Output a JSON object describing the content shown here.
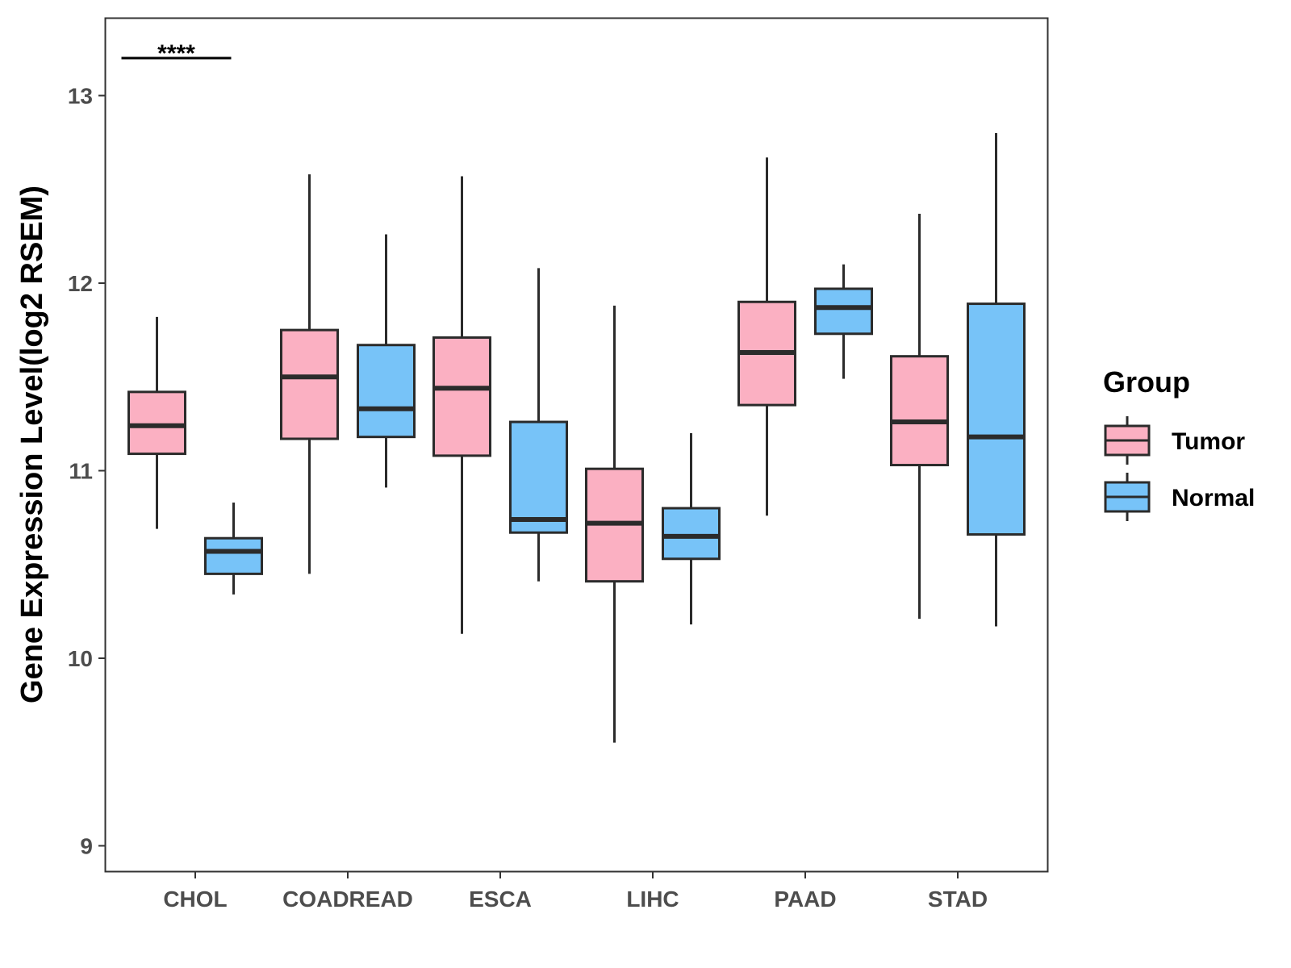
{
  "chart_data": {
    "type": "boxplot",
    "title": "",
    "xlabel": "",
    "ylabel": "Gene Expression Level(log2 RSEM)",
    "ylim": [
      8.7,
      13.4
    ],
    "yticks": [
      9,
      10,
      11,
      12,
      13
    ],
    "categories": [
      "CHOL",
      "COADREAD",
      "ESCA",
      "LIHC",
      "PAAD",
      "STAD"
    ],
    "legend": {
      "title": "Group",
      "position": "right",
      "entries": [
        {
          "name": "Tumor",
          "color": "#fbb0c2"
        },
        {
          "name": "Normal",
          "color": "#77c3f8"
        }
      ]
    },
    "series": [
      {
        "name": "Tumor",
        "color": "#fbb0c2",
        "boxes": [
          {
            "category": "CHOL",
            "min": 10.69,
            "q1": 11.09,
            "median": 11.24,
            "q3": 11.42,
            "max": 11.82
          },
          {
            "category": "COADREAD",
            "min": 10.45,
            "q1": 11.17,
            "median": 11.5,
            "q3": 11.75,
            "max": 12.58
          },
          {
            "category": "ESCA",
            "min": 10.13,
            "q1": 11.08,
            "median": 11.44,
            "q3": 11.71,
            "max": 12.57
          },
          {
            "category": "LIHC",
            "min": 9.55,
            "q1": 10.41,
            "median": 10.72,
            "q3": 11.01,
            "max": 11.88
          },
          {
            "category": "PAAD",
            "min": 10.76,
            "q1": 11.35,
            "median": 11.63,
            "q3": 11.9,
            "max": 12.67
          },
          {
            "category": "STAD",
            "min": 10.21,
            "q1": 11.03,
            "median": 11.26,
            "q3": 11.61,
            "max": 12.37
          }
        ]
      },
      {
        "name": "Normal",
        "color": "#77c3f8",
        "boxes": [
          {
            "category": "CHOL",
            "min": 10.34,
            "q1": 10.45,
            "median": 10.57,
            "q3": 10.64,
            "max": 10.83
          },
          {
            "category": "COADREAD",
            "min": 10.91,
            "q1": 11.18,
            "median": 11.33,
            "q3": 11.67,
            "max": 12.26
          },
          {
            "category": "ESCA",
            "min": 10.41,
            "q1": 10.67,
            "median": 10.74,
            "q3": 11.26,
            "max": 12.08
          },
          {
            "category": "LIHC",
            "min": 10.18,
            "q1": 10.53,
            "median": 10.65,
            "q3": 10.8,
            "max": 11.2
          },
          {
            "category": "PAAD",
            "min": 11.49,
            "q1": 11.73,
            "median": 11.87,
            "q3": 11.97,
            "max": 12.1
          },
          {
            "category": "STAD",
            "min": 10.17,
            "q1": 10.66,
            "median": 11.18,
            "q3": 11.89,
            "max": 12.8
          }
        ]
      }
    ],
    "annotations": [
      {
        "category": "CHOL",
        "text": "****",
        "y": 13.2
      }
    ]
  }
}
